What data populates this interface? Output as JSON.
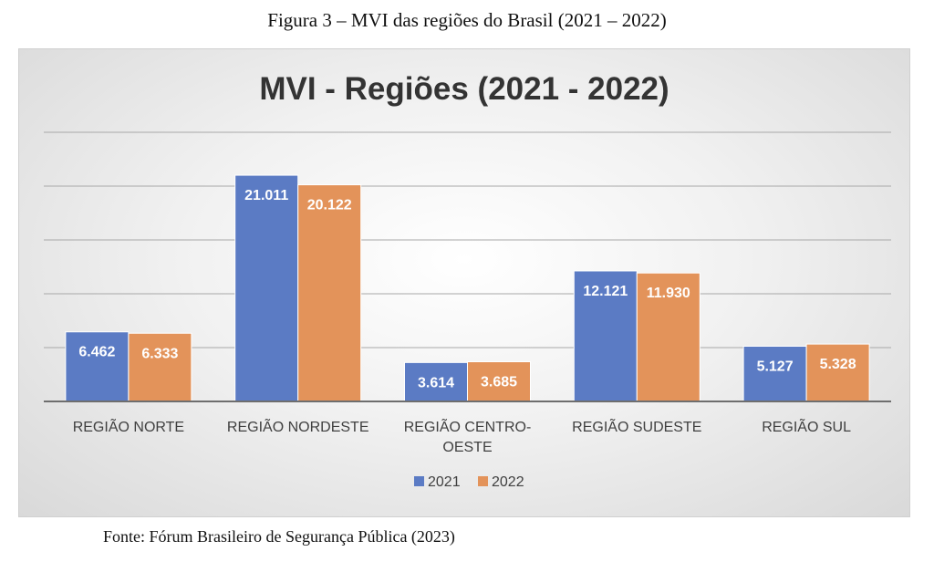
{
  "caption": "Figura 3 – MVI das regiões do Brasil (2021 – 2022)",
  "source": "Fonte: Fórum Brasileiro de Segurança Pública (2023)",
  "colors": {
    "series_2021": "#5B7BC4",
    "series_2022": "#E3935A",
    "grid": "#a8a8a8",
    "axis": "#6e6e6e"
  },
  "chart_data": {
    "type": "bar",
    "title": "MVI - Regiões (2021 - 2022)",
    "categories": [
      "REGIÃO NORTE",
      "REGIÃO NORDESTE",
      "REGIÃO CENTRO-OESTE",
      "REGIÃO SUDESTE",
      "REGIÃO SUL"
    ],
    "category_lines": [
      [
        "REGIÃO NORTE"
      ],
      [
        "REGIÃO NORDESTE"
      ],
      [
        "REGIÃO CENTRO-",
        "OESTE"
      ],
      [
        "REGIÃO SUDESTE"
      ],
      [
        "REGIÃO SUL"
      ]
    ],
    "series": [
      {
        "name": "2021",
        "values": [
          6462,
          21011,
          3614,
          12121,
          5127
        ],
        "labels": [
          "6.462",
          "21.011",
          "3.614",
          "12.121",
          "5.127"
        ]
      },
      {
        "name": "2022",
        "values": [
          6333,
          20122,
          3685,
          11930,
          5328
        ],
        "labels": [
          "6.333",
          "20.122",
          "3.685",
          "11.930",
          "5.328"
        ]
      }
    ],
    "ylim": [
      0,
      25000
    ],
    "grid": true,
    "legend_position": "bottom"
  }
}
